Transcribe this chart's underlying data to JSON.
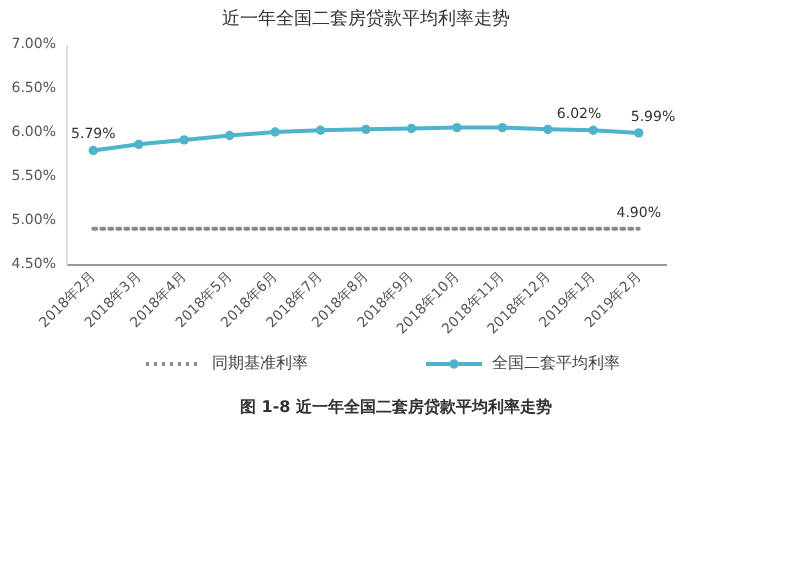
{
  "chart_data": {
    "type": "line",
    "title": "近一年全国二套房贷款平均利率走势",
    "categories": [
      "2018年2月",
      "2018年3月",
      "2018年4月",
      "2018年5月",
      "2018年6月",
      "2018年7月",
      "2018年8月",
      "2018年9月",
      "2018年10月",
      "2018年11月",
      "2018年12月",
      "2019年1月",
      "2019年2月"
    ],
    "series": [
      {
        "name": "同期基准利率",
        "color": "#8c8c8c",
        "line_style": "dotted",
        "marker": "none",
        "values": [
          4.9,
          4.9,
          4.9,
          4.9,
          4.9,
          4.9,
          4.9,
          4.9,
          4.9,
          4.9,
          4.9,
          4.9,
          4.9
        ],
        "value_labels": [
          null,
          null,
          null,
          null,
          null,
          null,
          null,
          null,
          null,
          null,
          null,
          null,
          "4.90%"
        ]
      },
      {
        "name": "全国二套平均利率",
        "color": "#4fb3c9",
        "line_style": "solid",
        "marker": "circle",
        "values": [
          5.79,
          5.86,
          5.91,
          5.96,
          6.0,
          6.02,
          6.03,
          6.04,
          6.05,
          6.05,
          6.03,
          6.02,
          5.99
        ],
        "value_labels": [
          "5.79%",
          null,
          null,
          null,
          null,
          null,
          null,
          null,
          null,
          null,
          null,
          "6.02%",
          "5.99%"
        ]
      }
    ],
    "ylim": [
      4.5,
      7.0
    ],
    "yticks": [
      {
        "value": 4.5,
        "label": "4.50%"
      },
      {
        "value": 5.0,
        "label": "5.00%"
      },
      {
        "value": 5.5,
        "label": "5.50%"
      },
      {
        "value": 6.0,
        "label": "6.00%"
      },
      {
        "value": 6.5,
        "label": "6.50%"
      },
      {
        "value": 7.0,
        "label": "7.00%"
      }
    ],
    "grid": false,
    "legend": "bottom",
    "annotations": [
      "图 1-8 近一年全国二套房贷款平均利率走势"
    ]
  }
}
